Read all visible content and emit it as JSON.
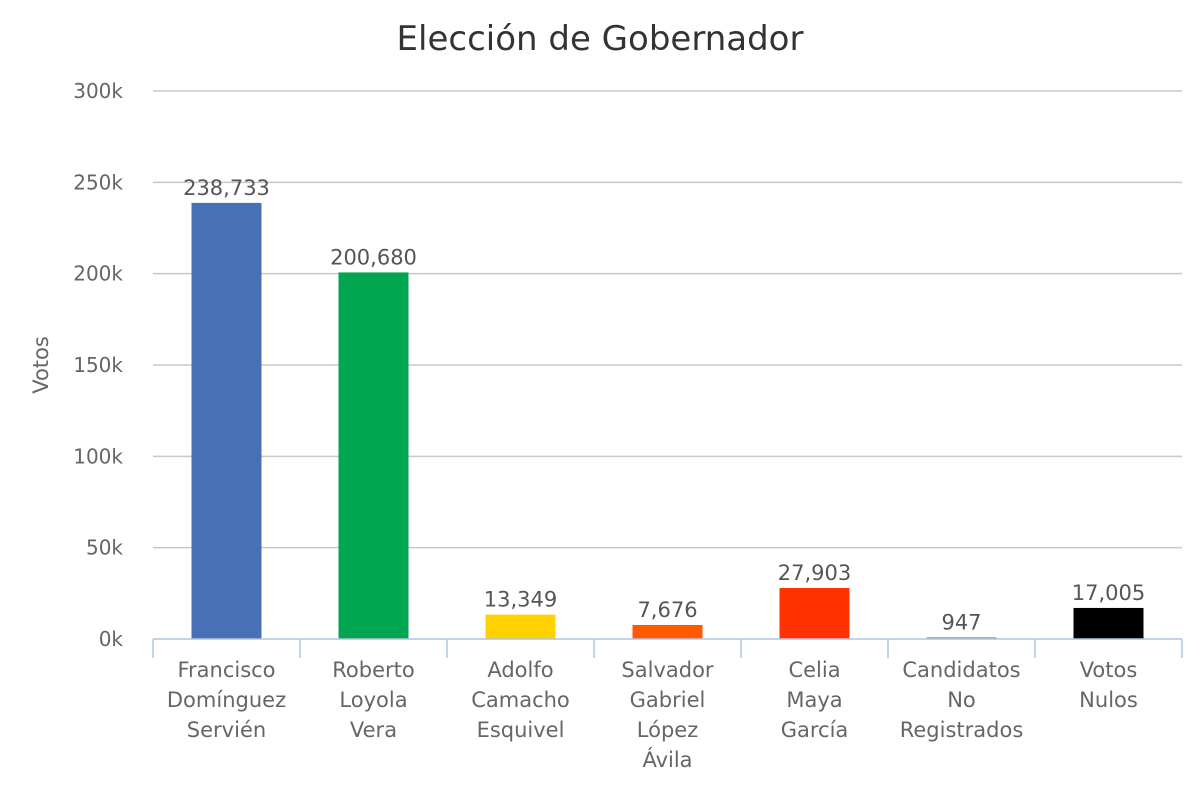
{
  "chart_data": {
    "type": "bar",
    "title": "Elección de Gobernador",
    "xlabel": "",
    "ylabel": "Votos",
    "ylim": [
      0,
      300000
    ],
    "yticks": [
      0,
      50000,
      100000,
      150000,
      200000,
      250000,
      300000
    ],
    "ytick_labels": [
      "0k",
      "50k",
      "100k",
      "150k",
      "200k",
      "250k",
      "300k"
    ],
    "grid": true,
    "legend": "none",
    "categories": [
      [
        "Francisco",
        "Domínguez",
        "Servién"
      ],
      [
        "Roberto",
        "Loyola",
        "Vera"
      ],
      [
        "Adolfo",
        "Camacho",
        "Esquivel"
      ],
      [
        "Salvador",
        "Gabriel",
        "López",
        "Ávila"
      ],
      [
        "Celia",
        "Maya",
        "García"
      ],
      [
        "Candidatos",
        "No",
        "Registrados"
      ],
      [
        "Votos",
        "Nulos"
      ]
    ],
    "values": [
      238733,
      200680,
      13349,
      7676,
      27903,
      947,
      17005
    ],
    "data_labels": [
      "238,733",
      "200,680",
      "13,349",
      "7,676",
      "27,903",
      "947",
      "17,005"
    ],
    "colors": [
      "#4870b6",
      "#00a650",
      "#ffd200",
      "#ff5a00",
      "#ff3300",
      "#999999",
      "#000000"
    ]
  }
}
